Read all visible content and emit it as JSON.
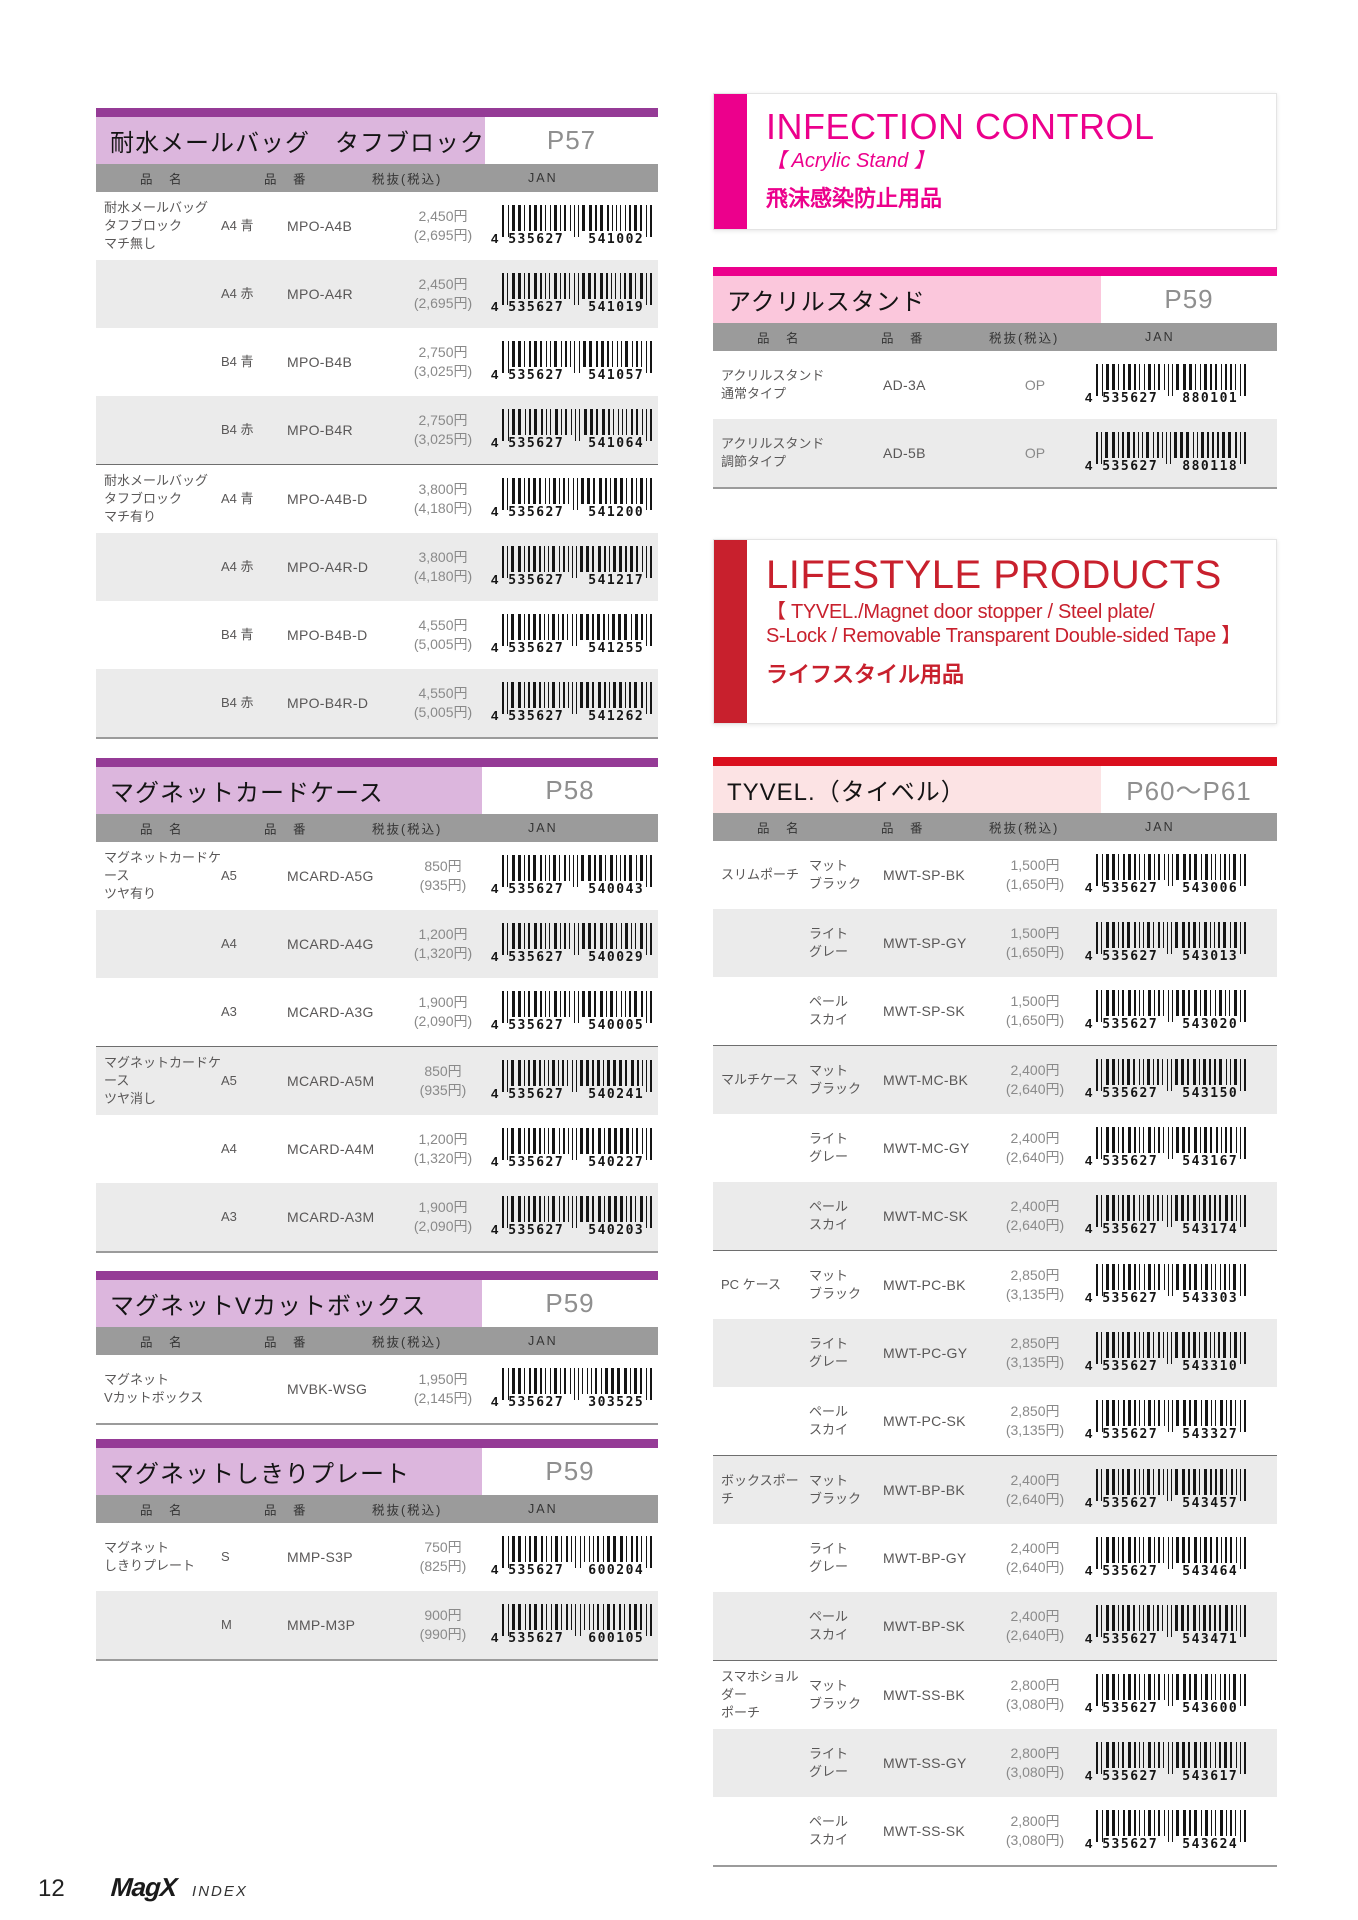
{
  "page": {
    "number": "12",
    "brand": "MagX",
    "brand_suffix": "INDEX"
  },
  "col_headers": {
    "name": "品　名",
    "code": "品　番",
    "price": "税抜(税込)",
    "jan": "JAN"
  },
  "sections": {
    "infection": {
      "title": "INFECTION CONTROL",
      "subtitle": "【 Acrylic Stand 】",
      "jp": "飛沫感染防止用品",
      "accent_color": "#ec008c"
    },
    "lifestyle": {
      "title": "LIFESTYLE PRODUCTS",
      "subtitle_line1": "【 TYVEL./Magnet door stopper / Steel plate/",
      "subtitle_line2": " S-Lock / Removable Transparent Double-sided Tape 】",
      "jp": "ライフスタイル用品",
      "accent_color": "#c8202d"
    }
  },
  "tables": {
    "mailbag": {
      "title": "耐水メールバッグ　タフブロック",
      "page_ref": "P57",
      "rows": [
        {
          "name": "耐水メールバッグ\nタフブロック\nマチ無し",
          "variant": "A4 青",
          "code": "MPO-A4B",
          "price": "2,450円",
          "price_incl": "(2,695円)",
          "jan_prefix": "4",
          "jan_mid": "535627",
          "jan_end": "541002"
        },
        {
          "name": "",
          "variant": "A4 赤",
          "code": "MPO-A4R",
          "price": "2,450円",
          "price_incl": "(2,695円)",
          "jan_prefix": "4",
          "jan_mid": "535627",
          "jan_end": "541019"
        },
        {
          "name": "",
          "variant": "B4 青",
          "code": "MPO-B4B",
          "price": "2,750円",
          "price_incl": "(3,025円)",
          "jan_prefix": "4",
          "jan_mid": "535627",
          "jan_end": "541057"
        },
        {
          "name": "",
          "variant": "B4 赤",
          "code": "MPO-B4R",
          "price": "2,750円",
          "price_incl": "(3,025円)",
          "jan_prefix": "4",
          "jan_mid": "535627",
          "jan_end": "541064"
        },
        {
          "name": "耐水メールバッグ\nタフブロック\nマチ有り",
          "variant": "A4 青",
          "code": "MPO-A4B-D",
          "price": "3,800円",
          "price_incl": "(4,180円)",
          "jan_prefix": "4",
          "jan_mid": "535627",
          "jan_end": "541200",
          "sep": true
        },
        {
          "name": "",
          "variant": "A4 赤",
          "code": "MPO-A4R-D",
          "price": "3,800円",
          "price_incl": "(4,180円)",
          "jan_prefix": "4",
          "jan_mid": "535627",
          "jan_end": "541217"
        },
        {
          "name": "",
          "variant": "B4 青",
          "code": "MPO-B4B-D",
          "price": "4,550円",
          "price_incl": "(5,005円)",
          "jan_prefix": "4",
          "jan_mid": "535627",
          "jan_end": "541255"
        },
        {
          "name": "",
          "variant": "B4 赤",
          "code": "MPO-B4R-D",
          "price": "4,550円",
          "price_incl": "(5,005円)",
          "jan_prefix": "4",
          "jan_mid": "535627",
          "jan_end": "541262"
        }
      ]
    },
    "cardcase": {
      "title": "マグネットカードケース",
      "page_ref": "P58",
      "rows": [
        {
          "name": "マグネットカードケース\nツヤ有り",
          "variant": "A5",
          "code": "MCARD-A5G",
          "price": "850円",
          "price_incl": "(935円)",
          "jan_prefix": "4",
          "jan_mid": "535627",
          "jan_end": "540043"
        },
        {
          "name": "",
          "variant": "A4",
          "code": "MCARD-A4G",
          "price": "1,200円",
          "price_incl": "(1,320円)",
          "jan_prefix": "4",
          "jan_mid": "535627",
          "jan_end": "540029"
        },
        {
          "name": "",
          "variant": "A3",
          "code": "MCARD-A3G",
          "price": "1,900円",
          "price_incl": "(2,090円)",
          "jan_prefix": "4",
          "jan_mid": "535627",
          "jan_end": "540005"
        },
        {
          "name": "マグネットカードケース\nツヤ消し",
          "variant": "A5",
          "code": "MCARD-A5M",
          "price": "850円",
          "price_incl": "(935円)",
          "jan_prefix": "4",
          "jan_mid": "535627",
          "jan_end": "540241",
          "sep": true
        },
        {
          "name": "",
          "variant": "A4",
          "code": "MCARD-A4M",
          "price": "1,200円",
          "price_incl": "(1,320円)",
          "jan_prefix": "4",
          "jan_mid": "535627",
          "jan_end": "540227"
        },
        {
          "name": "",
          "variant": "A3",
          "code": "MCARD-A3M",
          "price": "1,900円",
          "price_incl": "(2,090円)",
          "jan_prefix": "4",
          "jan_mid": "535627",
          "jan_end": "540203"
        }
      ]
    },
    "vcutbox": {
      "title": "マグネットVカットボックス",
      "page_ref": "P59",
      "rows": [
        {
          "name": "マグネット\nVカットボックス",
          "variant": "",
          "code": "MVBK-WSG",
          "price": "1,950円",
          "price_incl": "(2,145円)",
          "jan_prefix": "4",
          "jan_mid": "535627",
          "jan_end": "303525"
        }
      ]
    },
    "shikiri": {
      "title": "マグネットしきりプレート",
      "page_ref": "P59",
      "rows": [
        {
          "name": "マグネット\nしきりプレート",
          "variant": "S",
          "code": "MMP-S3P",
          "price": "750円",
          "price_incl": "(825円)",
          "jan_prefix": "4",
          "jan_mid": "535627",
          "jan_end": "600204"
        },
        {
          "name": "",
          "variant": "M",
          "code": "MMP-M3P",
          "price": "900円",
          "price_incl": "(990円)",
          "jan_prefix": "4",
          "jan_mid": "535627",
          "jan_end": "600105"
        }
      ]
    },
    "acrylic": {
      "title": "アクリルスタンド",
      "page_ref": "P59",
      "rows": [
        {
          "name": "アクリルスタンド\n通常タイプ",
          "variant": "",
          "code": "AD-3A",
          "price": "OP",
          "price_incl": "",
          "jan_prefix": "4",
          "jan_mid": "535627",
          "jan_end": "880101"
        },
        {
          "name": "アクリルスタンド\n調節タイプ",
          "variant": "",
          "code": "AD-5B",
          "price": "OP",
          "price_incl": "",
          "jan_prefix": "4",
          "jan_mid": "535627",
          "jan_end": "880118"
        }
      ]
    },
    "tyvel": {
      "title": "TYVEL.（タイベル）",
      "page_ref": "P60〜P61",
      "rows": [
        {
          "name": "スリムポーチ",
          "variant": "マット\nブラック",
          "code": "MWT-SP-BK",
          "price": "1,500円",
          "price_incl": "(1,650円)",
          "jan_prefix": "4",
          "jan_mid": "535627",
          "jan_end": "543006"
        },
        {
          "name": "",
          "variant": "ライト\nグレー",
          "code": "MWT-SP-GY",
          "price": "1,500円",
          "price_incl": "(1,650円)",
          "jan_prefix": "4",
          "jan_mid": "535627",
          "jan_end": "543013"
        },
        {
          "name": "",
          "variant": "ペール\nスカイ",
          "code": "MWT-SP-SK",
          "price": "1,500円",
          "price_incl": "(1,650円)",
          "jan_prefix": "4",
          "jan_mid": "535627",
          "jan_end": "543020"
        },
        {
          "name": "マルチケース",
          "variant": "マット\nブラック",
          "code": "MWT-MC-BK",
          "price": "2,400円",
          "price_incl": "(2,640円)",
          "jan_prefix": "4",
          "jan_mid": "535627",
          "jan_end": "543150",
          "sep": true
        },
        {
          "name": "",
          "variant": "ライト\nグレー",
          "code": "MWT-MC-GY",
          "price": "2,400円",
          "price_incl": "(2,640円)",
          "jan_prefix": "4",
          "jan_mid": "535627",
          "jan_end": "543167"
        },
        {
          "name": "",
          "variant": "ペール\nスカイ",
          "code": "MWT-MC-SK",
          "price": "2,400円",
          "price_incl": "(2,640円)",
          "jan_prefix": "4",
          "jan_mid": "535627",
          "jan_end": "543174"
        },
        {
          "name": "PC ケース",
          "variant": "マット\nブラック",
          "code": "MWT-PC-BK",
          "price": "2,850円",
          "price_incl": "(3,135円)",
          "jan_prefix": "4",
          "jan_mid": "535627",
          "jan_end": "543303",
          "sep": true
        },
        {
          "name": "",
          "variant": "ライト\nグレー",
          "code": "MWT-PC-GY",
          "price": "2,850円",
          "price_incl": "(3,135円)",
          "jan_prefix": "4",
          "jan_mid": "535627",
          "jan_end": "543310"
        },
        {
          "name": "",
          "variant": "ペール\nスカイ",
          "code": "MWT-PC-SK",
          "price": "2,850円",
          "price_incl": "(3,135円)",
          "jan_prefix": "4",
          "jan_mid": "535627",
          "jan_end": "543327"
        },
        {
          "name": "ボックスポーチ",
          "variant": "マット\nブラック",
          "code": "MWT-BP-BK",
          "price": "2,400円",
          "price_incl": "(2,640円)",
          "jan_prefix": "4",
          "jan_mid": "535627",
          "jan_end": "543457",
          "sep": true
        },
        {
          "name": "",
          "variant": "ライト\nグレー",
          "code": "MWT-BP-GY",
          "price": "2,400円",
          "price_incl": "(2,640円)",
          "jan_prefix": "4",
          "jan_mid": "535627",
          "jan_end": "543464"
        },
        {
          "name": "",
          "variant": "ペール\nスカイ",
          "code": "MWT-BP-SK",
          "price": "2,400円",
          "price_incl": "(2,640円)",
          "jan_prefix": "4",
          "jan_mid": "535627",
          "jan_end": "543471"
        },
        {
          "name": "スマホショルダー\nポーチ",
          "variant": "マット\nブラック",
          "code": "MWT-SS-BK",
          "price": "2,800円",
          "price_incl": "(3,080円)",
          "jan_prefix": "4",
          "jan_mid": "535627",
          "jan_end": "543600",
          "sep": true
        },
        {
          "name": "",
          "variant": "ライト\nグレー",
          "code": "MWT-SS-GY",
          "price": "2,800円",
          "price_incl": "(3,080円)",
          "jan_prefix": "4",
          "jan_mid": "535627",
          "jan_end": "543617"
        },
        {
          "name": "",
          "variant": "ペール\nスカイ",
          "code": "MWT-SS-SK",
          "price": "2,800円",
          "price_incl": "(3,080円)",
          "jan_prefix": "4",
          "jan_mid": "535627",
          "jan_end": "543624"
        }
      ]
    }
  }
}
